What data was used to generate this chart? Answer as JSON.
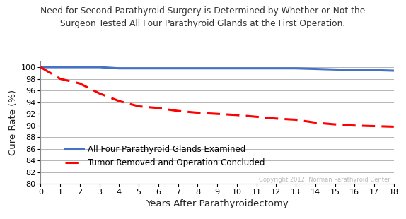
{
  "title_line1": "Need for Second Parathyroid Surgery is Determined by Whether or Not the",
  "title_line2": "Surgeon Tested All Four Parathyroid Glands at the First Operation.",
  "xlabel": "Years After Parathyroidectomy",
  "ylabel": "Cure Rate (%)",
  "xlim": [
    0,
    18
  ],
  "ylim": [
    80,
    101
  ],
  "yticks": [
    80,
    82,
    84,
    86,
    88,
    90,
    92,
    94,
    96,
    98,
    100
  ],
  "xticks": [
    0,
    1,
    2,
    3,
    4,
    5,
    6,
    7,
    8,
    9,
    10,
    11,
    12,
    13,
    14,
    15,
    16,
    17,
    18
  ],
  "blue_x": [
    0,
    1,
    2,
    3,
    4,
    5,
    6,
    7,
    8,
    9,
    10,
    11,
    12,
    13,
    14,
    15,
    16,
    17,
    18
  ],
  "blue_y": [
    100,
    100,
    100,
    100,
    99.8,
    99.8,
    99.8,
    99.8,
    99.8,
    99.8,
    99.8,
    99.8,
    99.8,
    99.8,
    99.7,
    99.6,
    99.5,
    99.5,
    99.4
  ],
  "red_x": [
    0,
    1,
    2,
    3,
    4,
    5,
    6,
    7,
    8,
    9,
    10,
    11,
    12,
    13,
    14,
    15,
    16,
    17,
    18
  ],
  "red_y": [
    100,
    98,
    97.2,
    95.5,
    94.2,
    93.3,
    93.0,
    92.5,
    92.2,
    92.0,
    91.8,
    91.5,
    91.2,
    91.0,
    90.5,
    90.2,
    90.0,
    89.9,
    89.8
  ],
  "blue_color": "#4472C4",
  "red_color": "#FF0000",
  "grid_color": "#AAAAAA",
  "background_color": "#FFFFFF",
  "legend_label_blue": "All Four Parathyroid Glands Examined",
  "legend_label_red": "Tumor Removed and Operation Concluded",
  "copyright_text": "Copyright 2012, Norman Parathyroid Center",
  "title_fontsize": 8.8,
  "axis_label_fontsize": 9.5,
  "tick_fontsize": 8,
  "legend_fontsize": 8.5
}
